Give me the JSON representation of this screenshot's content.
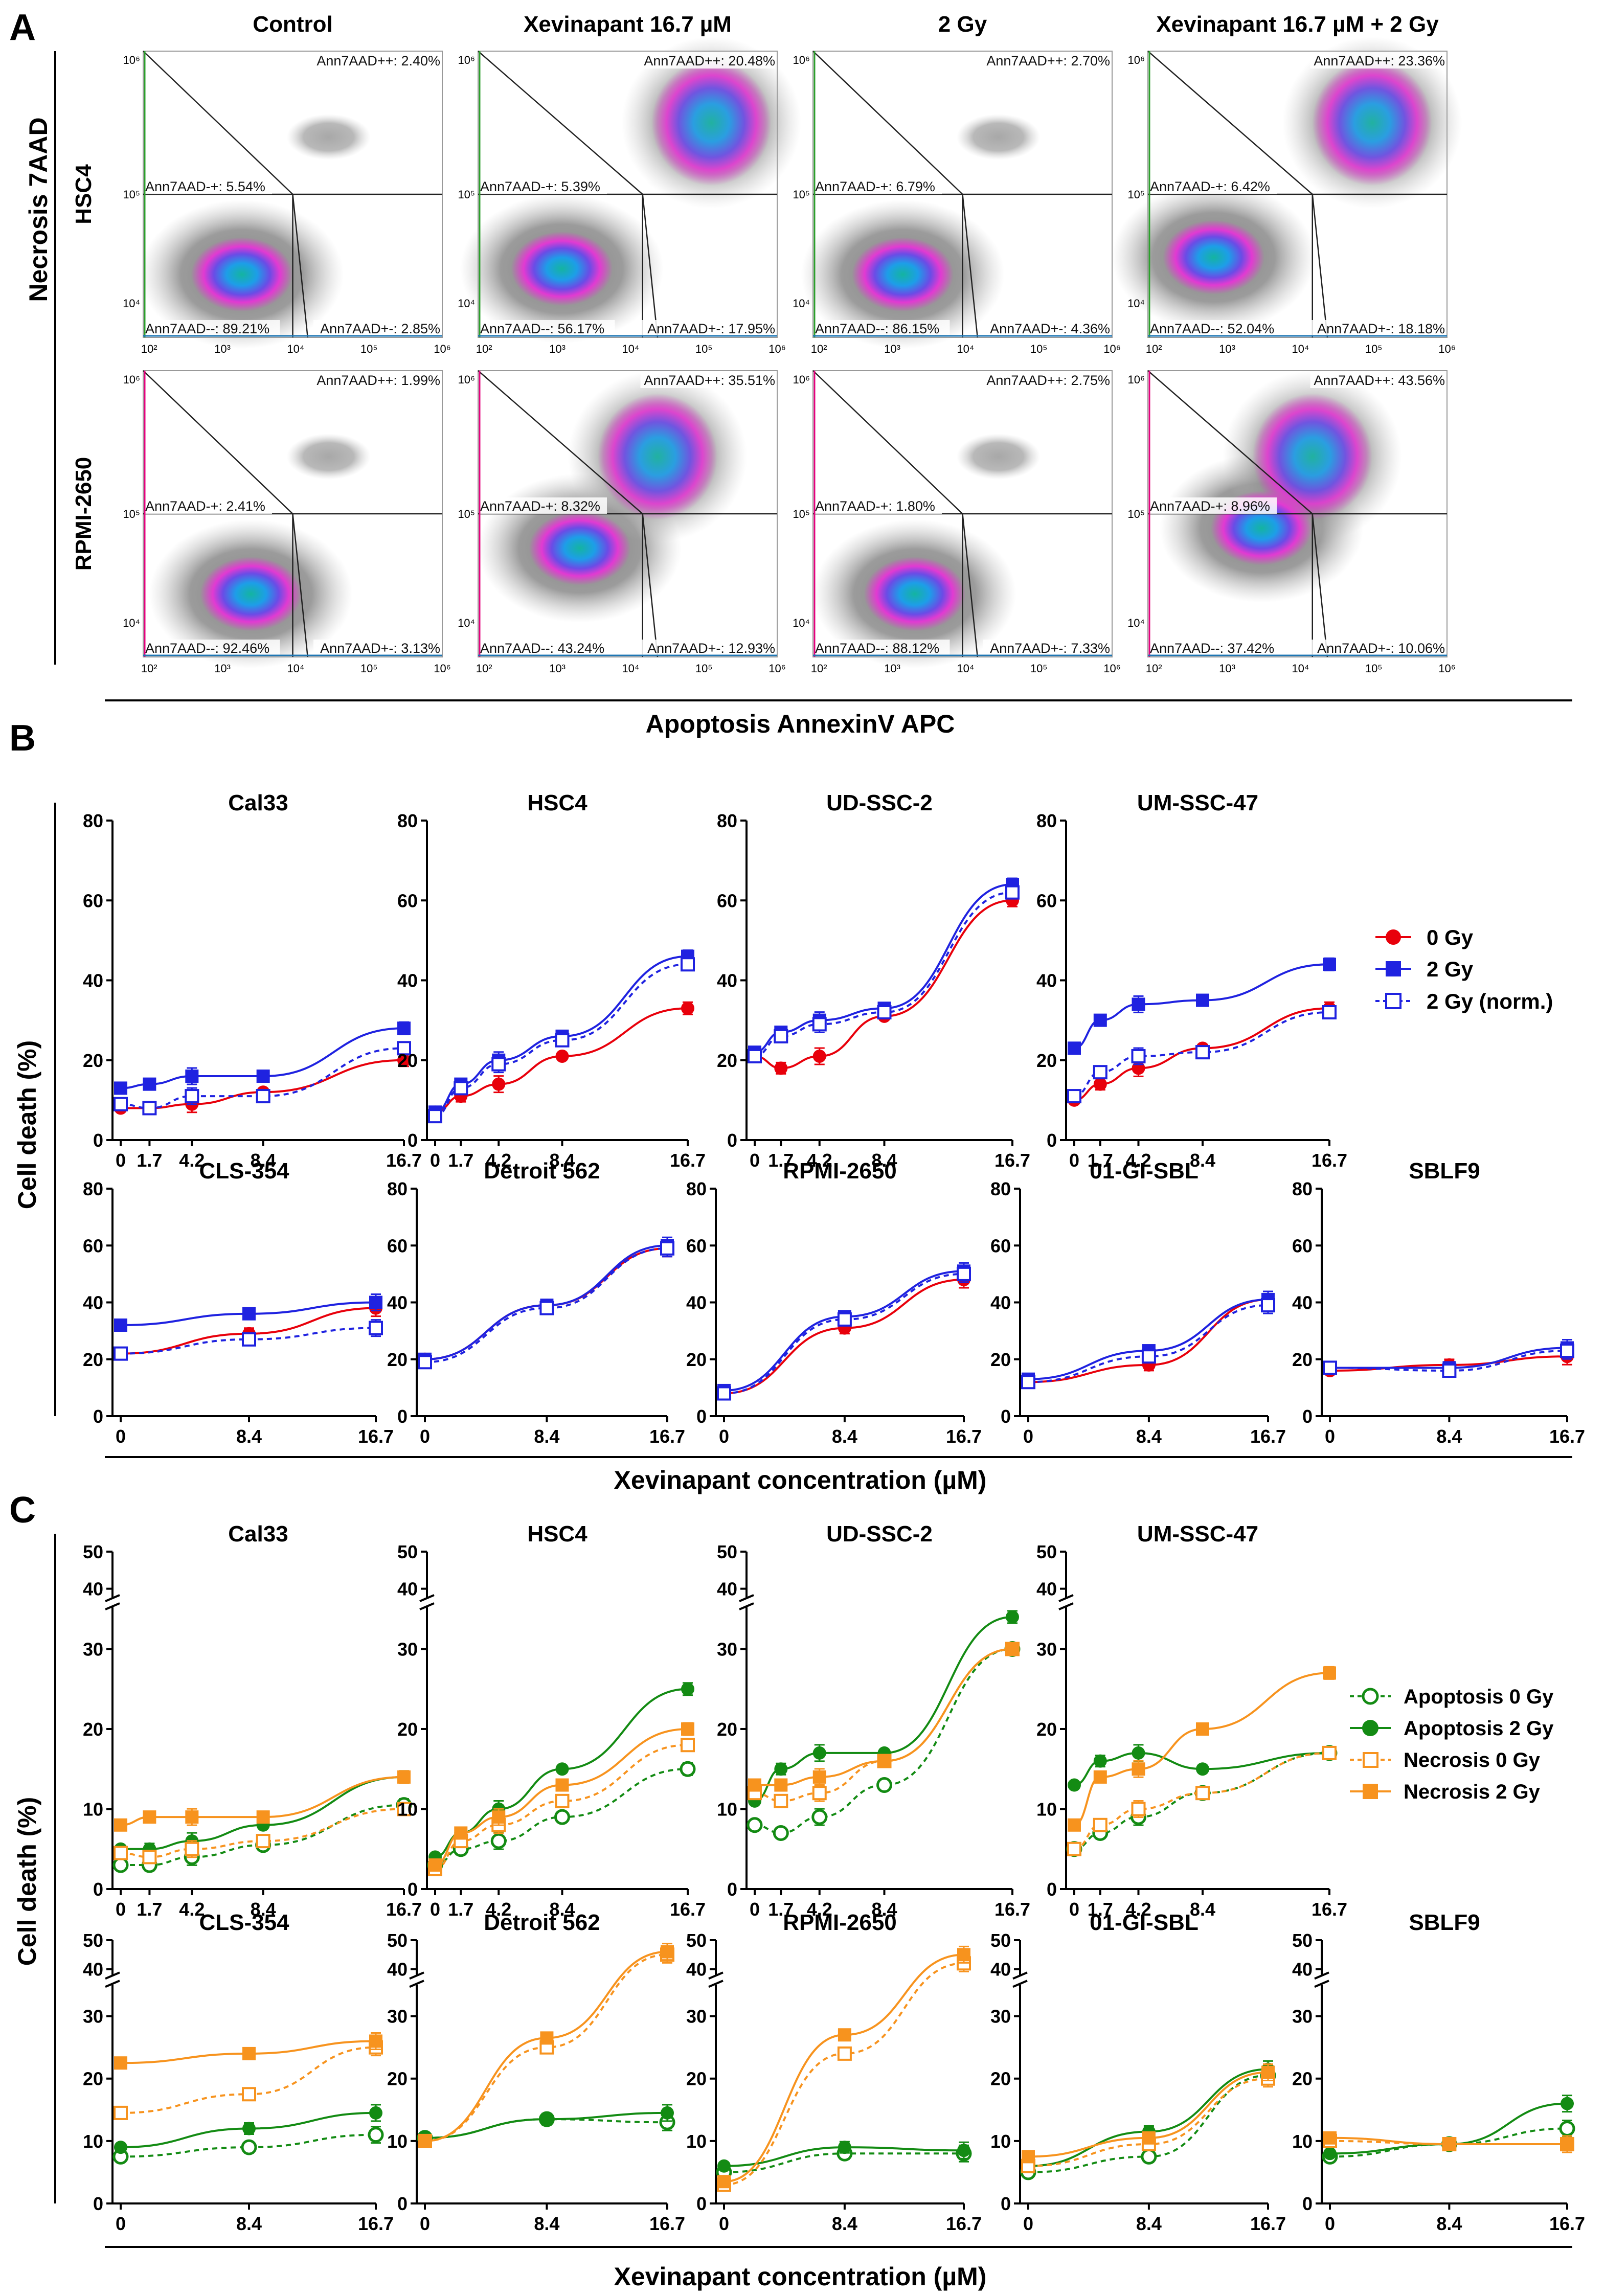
{
  "panels": {
    "a": "A",
    "b": "B",
    "c": "C"
  },
  "panel_a": {
    "ylabel": "Necrosis 7AAD",
    "xlabel": "Apoptosis AnnexinV APC",
    "columns": [
      "Control",
      "Xevinapant 16.7 µM",
      "2 Gy",
      "Xevinapant 16.7 µM + 2 Gy"
    ],
    "rows": [
      "HSC4",
      "RPMI-2650"
    ],
    "y_ticks": [
      "10⁶",
      "10⁵",
      "10⁴"
    ],
    "x_ticks": [
      "10²",
      "10³",
      "10⁴",
      "10⁵",
      "10⁶"
    ],
    "plots": [
      [
        {
          "pp": "Ann7AAD++: 2.40%",
          "mp": "Ann7AAD-+: 5.54%",
          "mm": "Ann7AAD--: 89.21%",
          "pm": "Ann7AAD+-: 2.85%"
        },
        {
          "pp": "Ann7AAD++: 20.48%",
          "mp": "Ann7AAD-+: 5.39%",
          "mm": "Ann7AAD--: 56.17%",
          "pm": "Ann7AAD+-: 17.95%"
        },
        {
          "pp": "Ann7AAD++: 2.70%",
          "mp": "Ann7AAD-+: 6.79%",
          "mm": "Ann7AAD--: 86.15%",
          "pm": "Ann7AAD+-: 4.36%"
        },
        {
          "pp": "Ann7AAD++: 23.36%",
          "mp": "Ann7AAD-+: 6.42%",
          "mm": "Ann7AAD--: 52.04%",
          "pm": "Ann7AAD+-: 18.18%"
        }
      ],
      [
        {
          "pp": "Ann7AAD++: 1.99%",
          "mp": "Ann7AAD-+: 2.41%",
          "mm": "Ann7AAD--: 92.46%",
          "pm": "Ann7AAD+-: 3.13%"
        },
        {
          "pp": "Ann7AAD++: 35.51%",
          "mp": "Ann7AAD-+: 8.32%",
          "mm": "Ann7AAD--: 43.24%",
          "pm": "Ann7AAD+-: 12.93%"
        },
        {
          "pp": "Ann7AAD++: 2.75%",
          "mp": "Ann7AAD-+: 1.80%",
          "mm": "Ann7AAD--: 88.12%",
          "pm": "Ann7AAD+-: 7.33%"
        },
        {
          "pp": "Ann7AAD++: 43.56%",
          "mp": "Ann7AAD-+: 8.96%",
          "mm": "Ann7AAD--: 37.42%",
          "pm": "Ann7AAD+-: 10.06%"
        }
      ]
    ]
  },
  "colors": {
    "red": "#e8000b",
    "blue": "#1f22e0",
    "green": "#138b13",
    "orange": "#f7931e",
    "grey": "#555555"
  },
  "legend_b": [
    "0 Gy",
    "2 Gy",
    "2 Gy (norm.)"
  ],
  "legend_c": [
    "Apoptosis 0 Gy",
    "Apoptosis 2 Gy",
    "Necrosis 0 Gy",
    "Necrosis 2 Gy"
  ],
  "ylabel_bc": "Cell death (%)",
  "xlabel_bc": "Xevinapant concentration (µM)",
  "chart_data": [
    {
      "panel": "B",
      "type": "line",
      "title": "Cal33",
      "x": [
        0,
        1.7,
        4.2,
        8.4,
        16.7
      ],
      "x_ticks": [
        "0",
        "1.7",
        "4.2",
        "8.4",
        "16.7"
      ],
      "ylim": [
        0,
        80
      ],
      "y_ticks": [
        0,
        20,
        40,
        60,
        80
      ],
      "series": [
        {
          "name": "0 Gy",
          "values": [
            8,
            8,
            9,
            12,
            20
          ]
        },
        {
          "name": "2 Gy",
          "values": [
            13,
            14,
            16,
            16,
            28
          ]
        },
        {
          "name": "2 Gy (norm.)",
          "values": [
            9,
            8,
            11,
            11,
            23
          ]
        }
      ]
    },
    {
      "panel": "B",
      "type": "line",
      "title": "HSC4",
      "x": [
        0,
        1.7,
        4.2,
        8.4,
        16.7
      ],
      "x_ticks": [
        "0",
        "1.7",
        "4.2",
        "8.4",
        "16.7"
      ],
      "ylim": [
        0,
        80
      ],
      "y_ticks": [
        0,
        20,
        40,
        60,
        80
      ],
      "series": [
        {
          "name": "0 Gy",
          "values": [
            7,
            11,
            14,
            21,
            33
          ]
        },
        {
          "name": "2 Gy",
          "values": [
            7,
            14,
            20,
            26,
            46
          ]
        },
        {
          "name": "2 Gy (norm.)",
          "values": [
            6,
            13,
            19,
            25,
            44
          ]
        }
      ]
    },
    {
      "panel": "B",
      "type": "line",
      "title": "UD-SSC-2",
      "x": [
        0,
        1.7,
        4.2,
        8.4,
        16.7
      ],
      "x_ticks": [
        "0",
        "1.7",
        "4.2",
        "8.4",
        "16.7"
      ],
      "ylim": [
        0,
        80
      ],
      "y_ticks": [
        0,
        20,
        40,
        60,
        80
      ],
      "series": [
        {
          "name": "0 Gy",
          "values": [
            21,
            18,
            21,
            31,
            60
          ]
        },
        {
          "name": "2 Gy",
          "values": [
            22,
            27,
            30,
            33,
            64
          ]
        },
        {
          "name": "2 Gy (norm.)",
          "values": [
            21,
            26,
            29,
            32,
            62
          ]
        }
      ]
    },
    {
      "panel": "B",
      "type": "line",
      "title": "UM-SSC-47",
      "x": [
        0,
        1.7,
        4.2,
        8.4,
        16.7
      ],
      "x_ticks": [
        "0",
        "1.7",
        "4.2",
        "8.4",
        "16.7"
      ],
      "ylim": [
        0,
        80
      ],
      "y_ticks": [
        0,
        20,
        40,
        60,
        80
      ],
      "series": [
        {
          "name": "0 Gy",
          "values": [
            10,
            14,
            18,
            23,
            33
          ]
        },
        {
          "name": "2 Gy",
          "values": [
            23,
            30,
            34,
            35,
            44
          ]
        },
        {
          "name": "2 Gy (norm.)",
          "values": [
            11,
            17,
            21,
            22,
            32
          ]
        }
      ]
    },
    {
      "panel": "B",
      "type": "line",
      "title": "CLS-354",
      "x": [
        0,
        8.4,
        16.7
      ],
      "x_ticks": [
        "0",
        "8.4",
        "16.7"
      ],
      "ylim": [
        0,
        80
      ],
      "y_ticks": [
        0,
        20,
        40,
        60,
        80
      ],
      "series": [
        {
          "name": "0 Gy",
          "values": [
            22,
            29,
            38
          ]
        },
        {
          "name": "2 Gy",
          "values": [
            32,
            36,
            40
          ]
        },
        {
          "name": "2 Gy (norm.)",
          "values": [
            22,
            27,
            31
          ]
        }
      ]
    },
    {
      "panel": "B",
      "type": "line",
      "title": "Detroit 562",
      "x": [
        0,
        8.4,
        16.7
      ],
      "x_ticks": [
        "0",
        "8.4",
        "16.7"
      ],
      "ylim": [
        0,
        80
      ],
      "y_ticks": [
        0,
        20,
        40,
        60,
        80
      ],
      "series": [
        {
          "name": "0 Gy",
          "values": [
            20,
            39,
            59
          ]
        },
        {
          "name": "2 Gy",
          "values": [
            20,
            39,
            60
          ]
        },
        {
          "name": "2 Gy (norm.)",
          "values": [
            19,
            38,
            59
          ]
        }
      ]
    },
    {
      "panel": "B",
      "type": "line",
      "title": "RPMI-2650",
      "x": [
        0,
        8.4,
        16.7
      ],
      "x_ticks": [
        "0",
        "8.4",
        "16.7"
      ],
      "ylim": [
        0,
        80
      ],
      "y_ticks": [
        0,
        20,
        40,
        60,
        80
      ],
      "series": [
        {
          "name": "0 Gy",
          "values": [
            8,
            31,
            48
          ]
        },
        {
          "name": "2 Gy",
          "values": [
            9,
            35,
            51
          ]
        },
        {
          "name": "2 Gy (norm.)",
          "values": [
            8,
            34,
            50
          ]
        }
      ]
    },
    {
      "panel": "B",
      "type": "line",
      "title": "01-GI-SBL",
      "x": [
        0,
        8.4,
        16.7
      ],
      "x_ticks": [
        "0",
        "8.4",
        "16.7"
      ],
      "ylim": [
        0,
        80
      ],
      "y_ticks": [
        0,
        20,
        40,
        60,
        80
      ],
      "series": [
        {
          "name": "0 Gy",
          "values": [
            12,
            18,
            41
          ]
        },
        {
          "name": "2 Gy",
          "values": [
            13,
            23,
            41
          ]
        },
        {
          "name": "2 Gy (norm.)",
          "values": [
            12,
            21,
            39
          ]
        }
      ]
    },
    {
      "panel": "B",
      "type": "line",
      "title": "SBLF9",
      "x": [
        0,
        8.4,
        16.7
      ],
      "x_ticks": [
        "0",
        "8.4",
        "16.7"
      ],
      "ylim": [
        0,
        80
      ],
      "y_ticks": [
        0,
        20,
        40,
        60,
        80
      ],
      "series": [
        {
          "name": "0 Gy",
          "values": [
            16,
            18,
            21
          ]
        },
        {
          "name": "2 Gy",
          "values": [
            17,
            17,
            24
          ]
        },
        {
          "name": "2 Gy (norm.)",
          "values": [
            17,
            16,
            23
          ]
        }
      ]
    },
    {
      "panel": "C",
      "type": "line",
      "title": "Cal33",
      "x": [
        0,
        1.7,
        4.2,
        8.4,
        16.7
      ],
      "x_ticks": [
        "0",
        "1.7",
        "4.2",
        "8.4",
        "16.7"
      ],
      "y_ticks": [
        "0",
        "10",
        "20",
        "30",
        "40",
        "50"
      ],
      "series": [
        {
          "name": "Apoptosis 0 Gy",
          "values": [
            3,
            3,
            4,
            5.5,
            10.5
          ]
        },
        {
          "name": "Apoptosis 2 Gy",
          "values": [
            5,
            5,
            6,
            8,
            14
          ]
        },
        {
          "name": "Necrosis 0 Gy",
          "values": [
            4.5,
            4,
            5,
            6,
            10
          ]
        },
        {
          "name": "Necrosis 2 Gy",
          "values": [
            8,
            9,
            9,
            9,
            14
          ]
        }
      ]
    },
    {
      "panel": "C",
      "type": "line",
      "title": "HSC4",
      "x": [
        0,
        1.7,
        4.2,
        8.4,
        16.7
      ],
      "x_ticks": [
        "0",
        "1.7",
        "4.2",
        "8.4",
        "16.7"
      ],
      "y_ticks": [
        "0",
        "10",
        "20",
        "30",
        "40",
        "50"
      ],
      "series": [
        {
          "name": "Apoptosis 0 Gy",
          "values": [
            3,
            5,
            6,
            9,
            15
          ]
        },
        {
          "name": "Apoptosis 2 Gy",
          "values": [
            4,
            7,
            10,
            15,
            25
          ]
        },
        {
          "name": "Necrosis 0 Gy",
          "values": [
            2.5,
            6,
            8,
            11,
            18
          ]
        },
        {
          "name": "Necrosis 2 Gy",
          "values": [
            3,
            7,
            9,
            13,
            20
          ]
        }
      ]
    },
    {
      "panel": "C",
      "type": "line",
      "title": "UD-SSC-2",
      "x": [
        0,
        1.7,
        4.2,
        8.4,
        16.7
      ],
      "x_ticks": [
        "0",
        "1.7",
        "4.2",
        "8.4",
        "16.7"
      ],
      "y_ticks": [
        "0",
        "10",
        "20",
        "30",
        "40",
        "50"
      ],
      "series": [
        {
          "name": "Apoptosis 0 Gy",
          "values": [
            8,
            7,
            9,
            13,
            30
          ]
        },
        {
          "name": "Apoptosis 2 Gy",
          "values": [
            11,
            15,
            17,
            17,
            34
          ]
        },
        {
          "name": "Necrosis 0 Gy",
          "values": [
            12,
            11,
            12,
            16,
            30
          ]
        },
        {
          "name": "Necrosis 2 Gy",
          "values": [
            13,
            13,
            14,
            16,
            30
          ]
        }
      ]
    },
    {
      "panel": "C",
      "type": "line",
      "title": "UM-SSC-47",
      "x": [
        0,
        1.7,
        4.2,
        8.4,
        16.7
      ],
      "x_ticks": [
        "0",
        "1.7",
        "4.2",
        "8.4",
        "16.7"
      ],
      "y_ticks": [
        "0",
        "10",
        "20",
        "30",
        "40",
        "50"
      ],
      "series": [
        {
          "name": "Apoptosis 0 Gy",
          "values": [
            5,
            7,
            9,
            12,
            17
          ]
        },
        {
          "name": "Apoptosis 2 Gy",
          "values": [
            13,
            16,
            17,
            15,
            17
          ]
        },
        {
          "name": "Necrosis 0 Gy",
          "values": [
            5,
            8,
            10,
            12,
            17
          ]
        },
        {
          "name": "Necrosis 2 Gy",
          "values": [
            8,
            14,
            15,
            20,
            27
          ]
        }
      ]
    },
    {
      "panel": "C",
      "type": "line",
      "title": "CLS-354",
      "x": [
        0,
        8.4,
        16.7
      ],
      "x_ticks": [
        "0",
        "8.4",
        "16.7"
      ],
      "y_ticks": [
        "0",
        "10",
        "20",
        "30",
        "40",
        "50"
      ],
      "series": [
        {
          "name": "Apoptosis 0 Gy",
          "values": [
            7.5,
            9,
            11
          ]
        },
        {
          "name": "Apoptosis 2 Gy",
          "values": [
            9,
            12,
            14.5
          ]
        },
        {
          "name": "Necrosis 0 Gy",
          "values": [
            14.5,
            17.5,
            25
          ]
        },
        {
          "name": "Necrosis 2 Gy",
          "values": [
            22.5,
            24,
            26
          ]
        }
      ]
    },
    {
      "panel": "C",
      "type": "line",
      "title": "Detroit 562",
      "x": [
        0,
        8.4,
        16.7
      ],
      "x_ticks": [
        "0",
        "8.4",
        "16.7"
      ],
      "y_ticks": [
        "0",
        "10",
        "20",
        "30",
        "40",
        "50"
      ],
      "series": [
        {
          "name": "Apoptosis 0 Gy",
          "values": [
            10.5,
            13.5,
            13
          ]
        },
        {
          "name": "Apoptosis 2 Gy",
          "values": [
            10.5,
            13.5,
            14.5
          ]
        },
        {
          "name": "Necrosis 0 Gy",
          "values": [
            10,
            25,
            45
          ]
        },
        {
          "name": "Necrosis 2 Gy",
          "values": [
            10,
            26.5,
            46
          ]
        }
      ]
    },
    {
      "panel": "C",
      "type": "line",
      "title": "RPMI-2650",
      "x": [
        0,
        8.4,
        16.7
      ],
      "x_ticks": [
        "0",
        "8.4",
        "16.7"
      ],
      "y_ticks": [
        "0",
        "10",
        "20",
        "30",
        "40",
        "50"
      ],
      "series": [
        {
          "name": "Apoptosis 0 Gy",
          "values": [
            5,
            8,
            8
          ]
        },
        {
          "name": "Apoptosis 2 Gy",
          "values": [
            6,
            9,
            8.5
          ]
        },
        {
          "name": "Necrosis 0 Gy",
          "values": [
            3,
            24,
            42
          ]
        },
        {
          "name": "Necrosis 2 Gy",
          "values": [
            3.5,
            27,
            45
          ]
        }
      ]
    },
    {
      "panel": "C",
      "type": "line",
      "title": "01-GI-SBL",
      "x": [
        0,
        8.4,
        16.7
      ],
      "x_ticks": [
        "0",
        "8.4",
        "16.7"
      ],
      "y_ticks": [
        "0",
        "10",
        "20",
        "30",
        "40",
        "50"
      ],
      "series": [
        {
          "name": "Apoptosis 0 Gy",
          "values": [
            5,
            7.5,
            20.5
          ]
        },
        {
          "name": "Apoptosis 2 Gy",
          "values": [
            6,
            11.5,
            21.5
          ]
        },
        {
          "name": "Necrosis 0 Gy",
          "values": [
            6,
            9.5,
            20
          ]
        },
        {
          "name": "Necrosis 2 Gy",
          "values": [
            7.5,
            10.5,
            21
          ]
        }
      ]
    },
    {
      "panel": "C",
      "type": "line",
      "title": "SBLF9",
      "x": [
        0,
        8.4,
        16.7
      ],
      "x_ticks": [
        "0",
        "8.4",
        "16.7"
      ],
      "y_ticks": [
        "0",
        "10",
        "20",
        "30",
        "40",
        "50"
      ],
      "series": [
        {
          "name": "Apoptosis 0 Gy",
          "values": [
            7.5,
            9.5,
            12
          ]
        },
        {
          "name": "Apoptosis 2 Gy",
          "values": [
            8,
            9.5,
            16
          ]
        },
        {
          "name": "Necrosis 0 Gy",
          "values": [
            10,
            9.5,
            9.5
          ]
        },
        {
          "name": "Necrosis 2 Gy",
          "values": [
            10.5,
            9.5,
            9.5
          ]
        }
      ]
    }
  ]
}
